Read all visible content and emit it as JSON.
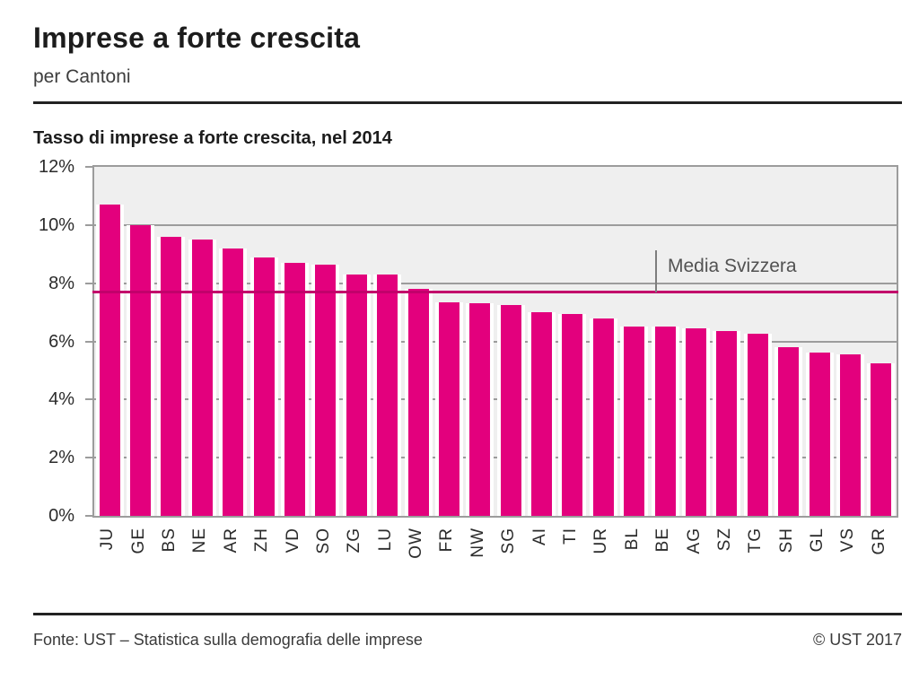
{
  "page": {
    "title": "Imprese a forte crescita",
    "subtitle": "per Cantoni",
    "footer_source": "Fonte: UST – Statistica sulla demografia delle imprese",
    "footer_copyright": "© UST 2017"
  },
  "chart_data": {
    "type": "bar",
    "title": "Tasso di imprese a forte crescita, nel 2014",
    "categories": [
      "JU",
      "GE",
      "BS",
      "NE",
      "AR",
      "ZH",
      "VD",
      "SO",
      "ZG",
      "LU",
      "OW",
      "FR",
      "NW",
      "SG",
      "AI",
      "TI",
      "UR",
      "BL",
      "BE",
      "AG",
      "SZ",
      "TG",
      "SH",
      "GL",
      "VS",
      "GR"
    ],
    "values": [
      10.7,
      10.0,
      9.6,
      9.5,
      9.2,
      8.9,
      8.7,
      8.65,
      8.3,
      8.3,
      7.8,
      7.35,
      7.3,
      7.25,
      7.0,
      6.95,
      6.8,
      6.5,
      6.5,
      6.45,
      6.35,
      6.25,
      5.8,
      5.6,
      5.55,
      5.25
    ],
    "unit": "%",
    "xlabel": "",
    "ylabel": "",
    "ylim": [
      0,
      12
    ],
    "yticks": [
      0,
      2,
      4,
      6,
      8,
      10,
      12
    ],
    "ytick_suffix": "%",
    "grid": true,
    "legend_position": "none",
    "reference_line": {
      "label": "Media Svizzera",
      "value": 7.7
    },
    "colors": {
      "bar": "#e3007d",
      "reference_line": "#c2016b",
      "plot_background": "#efefef",
      "grid": "#9c9c9c"
    }
  }
}
